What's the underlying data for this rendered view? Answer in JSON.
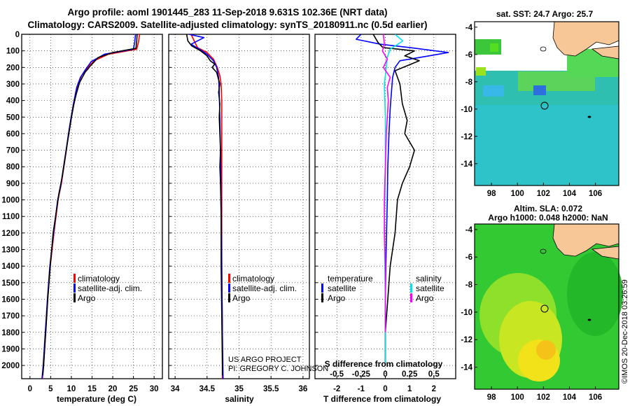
{
  "header": {
    "line1": "Argo profile: aoml 1901445_283 11-Sep-2018 9.631S 102.36E (NRT data)",
    "line2": "Climatology: CARS2009. Satellite-adjusted climatology: synTS_20180911.nc (0.5d earlier)"
  },
  "colors": {
    "climatology": "#ff0000",
    "satellite": "#0000ff",
    "argo": "#000000",
    "sat_salinity": "#00e5ee",
    "argo_salinity": "#ff00ff"
  },
  "y_axis": {
    "ticks": [
      "0",
      "100",
      "200",
      "300",
      "400",
      "500",
      "600",
      "700",
      "800",
      "900",
      "1000",
      "1100",
      "1200",
      "1300",
      "1400",
      "1500",
      "1600",
      "1700",
      "1800",
      "1900",
      "2000"
    ]
  },
  "panels": {
    "temperature": {
      "xlabel": "temperature (deg C)",
      "xticks": [
        "0",
        "5",
        "10",
        "15",
        "20",
        "25",
        "30"
      ],
      "legend": [
        "climatology",
        "satellite-adj. clim.",
        "Argo"
      ]
    },
    "salinity": {
      "xlabel": "salinity",
      "xticks": [
        "34",
        "34.5",
        "35",
        "35.5",
        "36"
      ],
      "legend": [
        "climatology",
        "satellite-adj. clim.",
        "Argo"
      ],
      "credit1": "US ARGO PROJECT",
      "credit2": "PI: GREGORY C. JOHNSON"
    },
    "difference": {
      "xlabel": "T difference from climatology",
      "xticks": [
        "-2",
        "-1",
        "0",
        "1",
        "2"
      ],
      "top_label": "S difference from climatology",
      "top_ticks": [
        "-0.5",
        "-0.25",
        "0",
        "0.25",
        "0.5"
      ],
      "legend_left_title": "temperature",
      "legend_left": [
        "satellite",
        "Argo"
      ],
      "legend_right_title": "salinity",
      "legend_right": [
        "satellite",
        "Argo"
      ]
    }
  },
  "maps": {
    "sst": {
      "title": "sat. SST: 24.7 Argo: 25.7",
      "yticks": [
        "-4",
        "-6",
        "-8",
        "-10",
        "-12",
        "-14"
      ],
      "xticks": [
        "98",
        "100",
        "102",
        "104",
        "106"
      ]
    },
    "sla": {
      "title1": "Altim. SLA: 0.072",
      "title2": "Argo h1000: 0.048 h2000: NaN",
      "yticks": [
        "-4",
        "-6",
        "-8",
        "-10",
        "-12",
        "-14"
      ],
      "xticks": [
        "98",
        "100",
        "102",
        "104",
        "106"
      ]
    },
    "profile_location": {
      "lon": 102.36,
      "lat": -9.631
    }
  },
  "watermark": "©IMOS 20-Dec-2018 03:26:59",
  "chart_data": [
    {
      "type": "line",
      "panel": "temperature",
      "xlabel": "temperature (deg C)",
      "ylabel": "",
      "xlim": [
        -2,
        32
      ],
      "ylim": [
        2080,
        0
      ],
      "grid": true,
      "legend_placement": "lower-middle",
      "series": [
        {
          "name": "climatology",
          "points": [
            [
              26.5,
              0
            ],
            [
              26.2,
              50
            ],
            [
              25.8,
              90
            ],
            [
              19,
              120
            ],
            [
              15.5,
              160
            ],
            [
              14,
              200
            ],
            [
              12.5,
              250
            ],
            [
              11.6,
              300
            ],
            [
              10.8,
              400
            ],
            [
              10,
              500
            ],
            [
              9.3,
              600
            ],
            [
              8.8,
              700
            ],
            [
              8.2,
              800
            ],
            [
              7.6,
              900
            ],
            [
              6.8,
              1000
            ],
            [
              5.8,
              1200
            ],
            [
              4.9,
              1400
            ],
            [
              4.3,
              1600
            ],
            [
              3.8,
              1800
            ],
            [
              3.3,
              2000
            ],
            [
              3.0,
              2080
            ]
          ]
        },
        {
          "name": "satellite-adj. clim.",
          "points": [
            [
              25.5,
              0
            ],
            [
              25.3,
              50
            ],
            [
              25.0,
              90
            ],
            [
              18,
              120
            ],
            [
              14.8,
              165
            ],
            [
              13.5,
              210
            ],
            [
              12.2,
              260
            ],
            [
              11.3,
              320
            ],
            [
              10.5,
              420
            ],
            [
              9.8,
              520
            ],
            [
              9.2,
              620
            ],
            [
              8.6,
              720
            ],
            [
              8.0,
              820
            ],
            [
              7.4,
              920
            ],
            [
              6.7,
              1000
            ],
            [
              5.7,
              1200
            ],
            [
              4.8,
              1400
            ],
            [
              4.2,
              1600
            ],
            [
              3.7,
              1800
            ],
            [
              3.2,
              2000
            ],
            [
              2.9,
              2080
            ]
          ]
        },
        {
          "name": "Argo",
          "points": [
            [
              25.9,
              0
            ],
            [
              25.8,
              40
            ],
            [
              25.6,
              85
            ],
            [
              20,
              110
            ],
            [
              16.5,
              140
            ],
            [
              14.8,
              185
            ],
            [
              13.3,
              230
            ],
            [
              12.0,
              290
            ],
            [
              11.2,
              360
            ],
            [
              10.6,
              420
            ],
            [
              9.9,
              520
            ],
            [
              9.4,
              600
            ],
            [
              8.9,
              680
            ],
            [
              8.4,
              760
            ],
            [
              7.8,
              860
            ],
            [
              7.0,
              960
            ],
            [
              6.3,
              1080
            ],
            [
              5.6,
              1200
            ],
            [
              4.9,
              1400
            ],
            [
              4.3,
              1600
            ],
            [
              3.8,
              1800
            ],
            [
              3.3,
              2000
            ],
            [
              3.1,
              2060
            ]
          ]
        }
      ]
    },
    {
      "type": "line",
      "panel": "salinity",
      "xlabel": "salinity",
      "ylabel": "",
      "xlim": [
        33.9,
        36.1
      ],
      "ylim": [
        2080,
        0
      ],
      "grid": true,
      "legend_placement": "lower-right",
      "series": [
        {
          "name": "climatology",
          "points": [
            [
              34.25,
              0
            ],
            [
              34.3,
              40
            ],
            [
              34.35,
              80
            ],
            [
              34.5,
              110
            ],
            [
              34.6,
              150
            ],
            [
              34.66,
              200
            ],
            [
              34.7,
              250
            ],
            [
              34.72,
              300
            ],
            [
              34.73,
              400
            ],
            [
              34.73,
              500
            ],
            [
              34.73,
              600
            ],
            [
              34.73,
              800
            ],
            [
              34.73,
              1000
            ],
            [
              34.73,
              1400
            ],
            [
              34.74,
              1800
            ],
            [
              34.74,
              2080
            ]
          ]
        },
        {
          "name": "satellite-adj. clim.",
          "points": [
            [
              34.22,
              0
            ],
            [
              34.45,
              20
            ],
            [
              34.25,
              60
            ],
            [
              34.38,
              90
            ],
            [
              34.5,
              120
            ],
            [
              34.6,
              160
            ],
            [
              34.65,
              200
            ],
            [
              34.68,
              260
            ],
            [
              34.69,
              350
            ],
            [
              34.7,
              500
            ],
            [
              34.71,
              700
            ],
            [
              34.72,
              1000
            ],
            [
              34.73,
              1400
            ],
            [
              34.74,
              1800
            ],
            [
              34.75,
              2080
            ]
          ]
        },
        {
          "name": "Argo",
          "points": [
            [
              34.18,
              0
            ],
            [
              34.2,
              40
            ],
            [
              34.26,
              70
            ],
            [
              34.4,
              100
            ],
            [
              34.5,
              130
            ],
            [
              34.55,
              160
            ],
            [
              34.62,
              180
            ],
            [
              34.58,
              200
            ],
            [
              34.65,
              230
            ],
            [
              34.67,
              260
            ],
            [
              34.7,
              300
            ],
            [
              34.68,
              350
            ],
            [
              34.7,
              420
            ],
            [
              34.69,
              500
            ],
            [
              34.7,
              600
            ],
            [
              34.71,
              700
            ],
            [
              34.7,
              800
            ],
            [
              34.71,
              900
            ],
            [
              34.72,
              1100
            ],
            [
              34.72,
              1400
            ],
            [
              34.73,
              1700
            ],
            [
              34.74,
              2000
            ],
            [
              34.74,
              2060
            ]
          ]
        }
      ]
    },
    {
      "type": "line",
      "panel": "difference",
      "xlabel": "T difference from climatology",
      "xlim": [
        -2.9,
        2.9
      ],
      "ylim": [
        2080,
        0
      ],
      "top_xlim": [
        -0.725,
        0.725
      ],
      "grid": true,
      "legend_placement": "lower-center",
      "series": [
        {
          "name": "satellite",
          "variable": "temperature",
          "points": [
            [
              -1.0,
              0
            ],
            [
              -1.2,
              30
            ],
            [
              -0.2,
              60
            ],
            [
              1.0,
              80
            ],
            [
              2.6,
              110
            ],
            [
              1.8,
              130
            ],
            [
              0.6,
              160
            ],
            [
              0.4,
              200
            ],
            [
              0.3,
              260
            ],
            [
              0.25,
              350
            ],
            [
              0.2,
              450
            ],
            [
              0.15,
              600
            ],
            [
              0.1,
              800
            ],
            [
              0.08,
              1000
            ],
            [
              0.05,
              1200
            ],
            [
              0.02,
              1400
            ],
            [
              0.0,
              1600
            ],
            [
              0.0,
              1800
            ],
            [
              0.0,
              2000
            ]
          ]
        },
        {
          "name": "Argo",
          "variable": "temperature",
          "points": [
            [
              -0.5,
              0
            ],
            [
              -0.3,
              50
            ],
            [
              -0.1,
              80
            ],
            [
              1.2,
              100
            ],
            [
              0.8,
              130
            ],
            [
              1.4,
              160
            ],
            [
              0.4,
              220
            ],
            [
              0.6,
              300
            ],
            [
              0.7,
              420
            ],
            [
              0.9,
              520
            ],
            [
              0.8,
              600
            ],
            [
              1.2,
              700
            ],
            [
              1.0,
              800
            ],
            [
              0.7,
              900
            ],
            [
              0.5,
              1000
            ],
            [
              0.4,
              1200
            ],
            [
              0.2,
              1400
            ],
            [
              0.1,
              1600
            ],
            [
              0.0,
              1800
            ],
            [
              0.0,
              2000
            ]
          ]
        },
        {
          "name": "satellite",
          "variable": "salinity",
          "points": [
            [
              0.1,
              0
            ],
            [
              0.18,
              40
            ],
            [
              0.05,
              90
            ],
            [
              0.02,
              140
            ],
            [
              0.01,
              200
            ],
            [
              -0.01,
              300
            ],
            [
              0.0,
              500
            ],
            [
              0.0,
              800
            ],
            [
              -0.01,
              1200
            ],
            [
              0.0,
              1600
            ],
            [
              0.0,
              2000
            ]
          ]
        },
        {
          "name": "Argo",
          "variable": "salinity",
          "points": [
            [
              -0.02,
              0
            ],
            [
              -0.01,
              60
            ],
            [
              -0.03,
              100
            ],
            [
              0.02,
              150
            ],
            [
              -0.02,
              200
            ],
            [
              0.05,
              260
            ],
            [
              0.02,
              320
            ],
            [
              0.03,
              400
            ],
            [
              0.01,
              600
            ],
            [
              0.0,
              800
            ],
            [
              -0.01,
              1000
            ],
            [
              -0.01,
              1200
            ],
            [
              0.0,
              1400
            ],
            [
              0.0,
              1600
            ],
            [
              0.0,
              1800
            ]
          ]
        }
      ]
    }
  ]
}
